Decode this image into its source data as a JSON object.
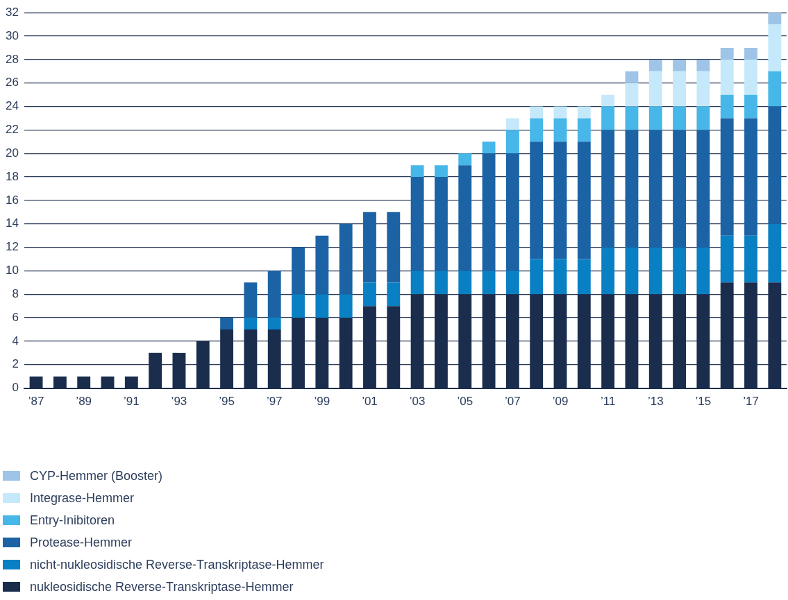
{
  "chart_data": {
    "type": "bar",
    "stacked": true,
    "categories": [
      "’87",
      null,
      "’89",
      null,
      "’91",
      null,
      "’93",
      null,
      "’95",
      null,
      "’97",
      null,
      "’99",
      null,
      "’01",
      null,
      "’03",
      null,
      "’05",
      null,
      "’07",
      null,
      "’09",
      null,
      "’11",
      null,
      "’13",
      null,
      "’15",
      null,
      "’17",
      null
    ],
    "series": [
      {
        "name": "nukleosidische Reverse-Transkriptase-Hemmer",
        "color": "#1a2d4d",
        "values": [
          1,
          1,
          1,
          1,
          1,
          3,
          3,
          4,
          5,
          5,
          5,
          6,
          6,
          6,
          7,
          7,
          8,
          8,
          8,
          8,
          8,
          8,
          8,
          8,
          8,
          8,
          8,
          8,
          8,
          9,
          9,
          9
        ]
      },
      {
        "name": "nicht-nukleosidische Reverse-Transkriptase-Hemmer",
        "color": "#0a80c4",
        "values": [
          0,
          0,
          0,
          0,
          0,
          0,
          0,
          0,
          0,
          1,
          1,
          2,
          2,
          2,
          2,
          2,
          2,
          2,
          2,
          2,
          2,
          3,
          3,
          3,
          4,
          4,
          4,
          4,
          4,
          4,
          4,
          5
        ]
      },
      {
        "name": "Protease-Hemmer",
        "color": "#1b63a4",
        "values": [
          0,
          0,
          0,
          0,
          0,
          0,
          0,
          0,
          1,
          3,
          4,
          4,
          5,
          6,
          6,
          6,
          8,
          8,
          9,
          10,
          10,
          10,
          10,
          10,
          10,
          10,
          10,
          10,
          10,
          10,
          10,
          10
        ]
      },
      {
        "name": "Entry-Inibitoren",
        "color": "#46b7e8",
        "values": [
          0,
          0,
          0,
          0,
          0,
          0,
          0,
          0,
          0,
          0,
          0,
          0,
          0,
          0,
          0,
          0,
          1,
          1,
          1,
          1,
          2,
          2,
          2,
          2,
          2,
          2,
          2,
          2,
          2,
          2,
          2,
          3
        ]
      },
      {
        "name": "Integrase-Hemmer",
        "color": "#c5e9fa",
        "values": [
          0,
          0,
          0,
          0,
          0,
          0,
          0,
          0,
          0,
          0,
          0,
          0,
          0,
          0,
          0,
          0,
          0,
          0,
          0,
          0,
          1,
          1,
          1,
          1,
          1,
          2,
          3,
          3,
          3,
          3,
          3,
          4
        ]
      },
      {
        "name": "CYP-Hemmer (Booster)",
        "color": "#9ec4e8",
        "values": [
          0,
          0,
          0,
          0,
          0,
          0,
          0,
          0,
          0,
          0,
          0,
          0,
          0,
          0,
          0,
          0,
          0,
          0,
          0,
          0,
          0,
          0,
          0,
          0,
          0,
          1,
          1,
          1,
          1,
          1,
          1,
          1
        ]
      }
    ],
    "ylim": [
      0,
      32
    ],
    "yticks": [
      0,
      2,
      4,
      6,
      8,
      10,
      12,
      14,
      16,
      18,
      20,
      22,
      24,
      26,
      28,
      30,
      32
    ],
    "grid": "y",
    "legend": "bottom"
  }
}
